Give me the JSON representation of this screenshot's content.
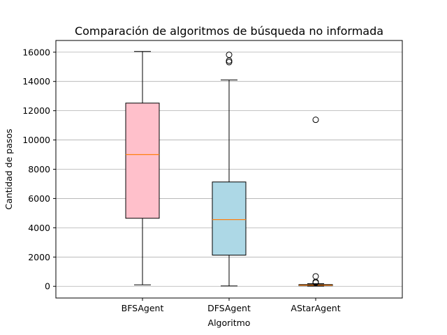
{
  "chart_data": {
    "type": "boxplot",
    "title": "Comparación de algoritmos de búsqueda no informada",
    "xlabel": "Algoritmo",
    "ylabel": "Cantidad de pasos",
    "categories": [
      "BFSAgent",
      "DFSAgent",
      "AStarAgent"
    ],
    "ylim": [
      -800,
      16800
    ],
    "yticks": [
      0,
      2000,
      4000,
      6000,
      8000,
      10000,
      12000,
      14000,
      16000
    ],
    "grid": "horizontal",
    "series": [
      {
        "category": "BFSAgent",
        "whisker_low": 100,
        "q1": 4650,
        "median": 9000,
        "q3": 12520,
        "whisker_high": 16050,
        "outliers": [],
        "fill": "#ffc0cb"
      },
      {
        "category": "DFSAgent",
        "whisker_low": 20,
        "q1": 2130,
        "median": 4560,
        "q3": 7130,
        "whisker_high": 14100,
        "outliers": [
          15320,
          15420,
          15820
        ],
        "fill": "#add8e6"
      },
      {
        "category": "AStarAgent",
        "whisker_low": 10,
        "q1": 50,
        "median": 80,
        "q3": 120,
        "whisker_high": 180,
        "outliers": [
          250,
          300,
          680,
          11380
        ],
        "fill": "#90ee90"
      }
    ],
    "colors": {
      "median": "#ff7f0e",
      "grid": "#b0b0b0",
      "outline": "#000000"
    }
  }
}
